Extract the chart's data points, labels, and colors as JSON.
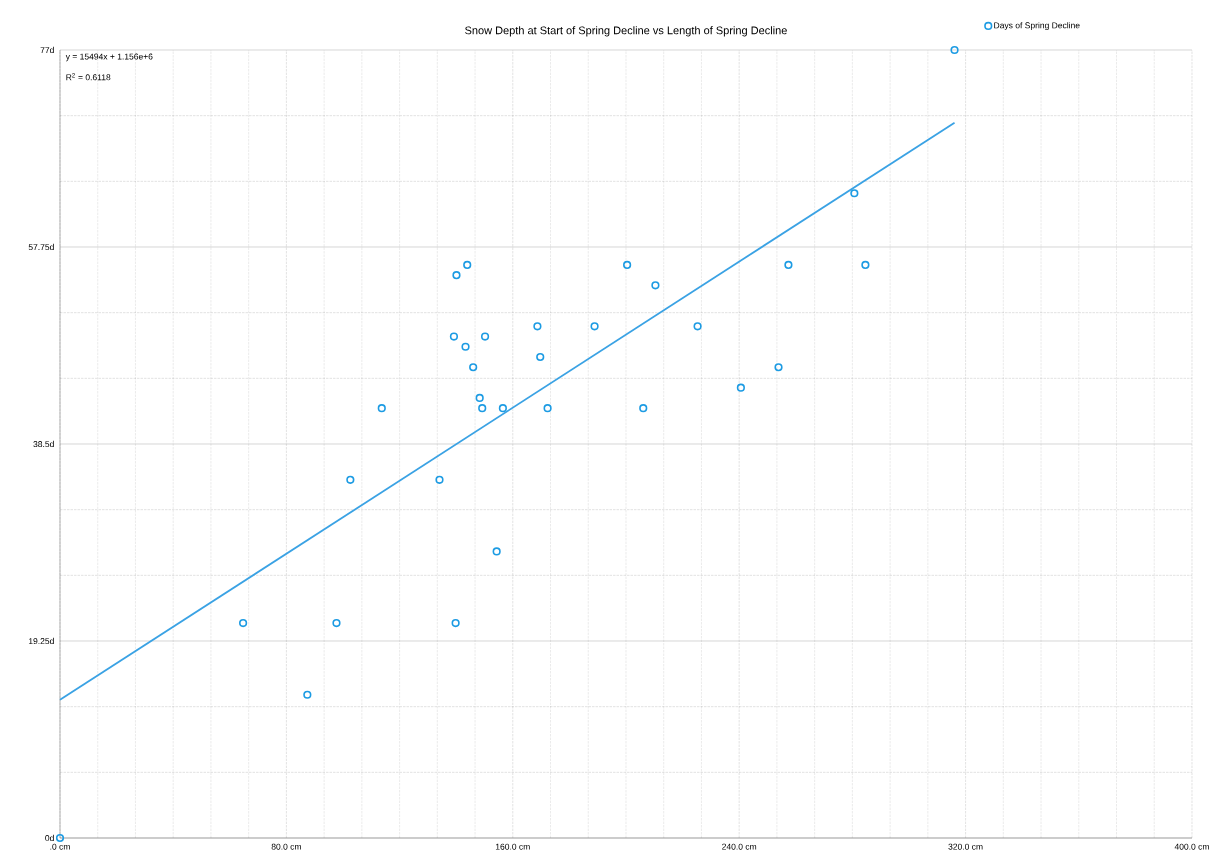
{
  "chart_data": {
    "type": "scatter",
    "title": "Snow Depth at Start of Spring Decline vs Length of Spring Decline",
    "xlim": [
      0,
      400
    ],
    "ylim": [
      0,
      77
    ],
    "xticks": [
      {
        "value": 0,
        "label": ".0 cm"
      },
      {
        "value": 80,
        "label": "80.0 cm"
      },
      {
        "value": 160,
        "label": "160.0 cm"
      },
      {
        "value": 240,
        "label": "240.0 cm"
      },
      {
        "value": 320,
        "label": "320.0 cm"
      },
      {
        "value": 400,
        "label": "400.0 cm"
      }
    ],
    "yticks": [
      {
        "value": 0,
        "label": "0d"
      },
      {
        "value": 19.25,
        "label": "19.25d"
      },
      {
        "value": 38.5,
        "label": "38.5d"
      },
      {
        "value": 57.75,
        "label": "57.75d"
      },
      {
        "value": 77,
        "label": "77d"
      }
    ],
    "grid": true,
    "legend": "top right",
    "annotations": [
      "y = 15494x + 1.156e+6",
      "R$^{2}$ = 0.6118"
    ],
    "series": [
      {
        "name": "Days of Spring Decline",
        "color": "#1c9be3",
        "marker": "circle",
        "x": [
          0,
          64.7,
          87.4,
          97.7,
          102.6,
          113.7,
          134.1,
          139.8,
          139.2,
          140.1,
          143.9,
          143.3,
          146.0,
          148.3,
          149.2,
          150.2,
          154.3,
          156.5,
          168.7,
          169.7,
          172.3,
          188.9,
          200.4,
          206.1,
          210.4,
          225.3,
          240.6,
          253.9,
          257.4,
          280.7,
          284.6,
          316.1
        ],
        "values": [
          0,
          21,
          14,
          21,
          35,
          42,
          35,
          21,
          49,
          55,
          56,
          48,
          46,
          43,
          42,
          49,
          28,
          42,
          50,
          47,
          42,
          50,
          56,
          42,
          54,
          50,
          44,
          46,
          56,
          63,
          56,
          77
        ]
      },
      {
        "type": "line",
        "color": "#3aa2e4",
        "line_style": "solid",
        "x": [
          0,
          316.1
        ],
        "values": [
          13.5,
          69.9
        ]
      }
    ]
  }
}
